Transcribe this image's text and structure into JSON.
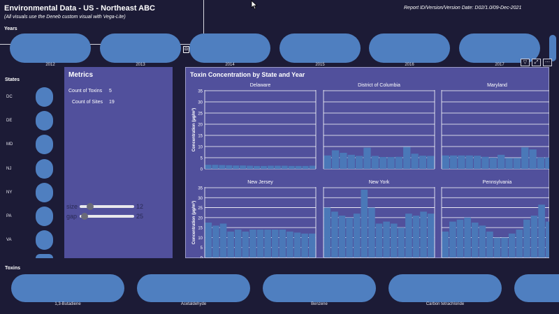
{
  "header": {
    "title": "Environmental Data - US - Northeast ABC",
    "subtitle": "(All visuals use the Deneb custom visual with Vega-Lite)",
    "report_id": "Report ID/Version/Version Date: D02/1.0/09-Dec-2021"
  },
  "years": {
    "label": "Years",
    "items": [
      "2012",
      "2013",
      "2014",
      "2015",
      "2016",
      "2017"
    ]
  },
  "states": {
    "label": "States",
    "items": [
      "DC",
      "DE",
      "MD",
      "NJ",
      "NY",
      "PA",
      "VA"
    ]
  },
  "metrics": {
    "title": "Metrics",
    "count_toxins_label": "Count of Toxins",
    "count_toxins_value": "5",
    "count_sites_label": "Count of Sites",
    "count_sites_value": "19",
    "sliders": [
      {
        "label": "size",
        "value": "12",
        "fraction": 0.2
      },
      {
        "label": "gap",
        "value": "25",
        "fraction": 0.1
      }
    ]
  },
  "toxins": {
    "label": "Toxins",
    "items": [
      "1,3-Butadiene",
      "Acetaldehyde",
      "Benzene",
      "Carbon tetrachloride"
    ]
  },
  "colors": {
    "background": "#1c1b36",
    "panel": "#51509c",
    "pill": "#4f7fc0",
    "bar": "#4a78b8"
  },
  "icons": {
    "filter": "filter-icon",
    "focus": "focus-mode-icon",
    "more": "more-options-icon",
    "cursor": "mouse-cursor-icon"
  },
  "chart_data": {
    "type": "bar",
    "title": "Toxin Concentration by State and Year",
    "ylabel": "Concentration (µg/m³)",
    "ylim": [
      0,
      35
    ],
    "yticks": [
      0,
      5,
      10,
      15,
      20,
      25,
      30,
      35
    ],
    "facets": [
      {
        "name": "Delaware",
        "values": [
          1.8,
          1.8,
          1.7,
          1.6,
          1.5,
          1.5,
          1.4,
          1.3,
          1.3,
          1.4,
          1.4,
          1.4,
          1.3,
          1.3,
          1.3,
          1.4
        ]
      },
      {
        "name": "District of Columbia",
        "values": [
          6.0,
          8.3,
          7.2,
          6.3,
          5.8,
          9.5,
          5.8,
          5.3,
          5.3,
          5.4,
          9.8,
          6.8,
          5.9,
          5.8
        ]
      },
      {
        "name": "Maryland",
        "values": [
          6.0,
          6.0,
          6.0,
          6.0,
          5.9,
          5.4,
          5.0,
          6.3,
          4.9,
          4.9,
          9.6,
          8.7,
          5.1,
          5.1
        ]
      },
      {
        "name": "New Jersey",
        "values": [
          17.5,
          16.0,
          17.0,
          13.0,
          14.0,
          13.0,
          14.0,
          14.0,
          14.0,
          14.0,
          14.0,
          13.0,
          12.5,
          12.0,
          12.0
        ]
      },
      {
        "name": "New York",
        "values": [
          25.0,
          23.0,
          21.0,
          20.0,
          22.0,
          34.0,
          25.0,
          17.0,
          18.0,
          17.0,
          15.0,
          22.0,
          21.0,
          23.0,
          22.0
        ]
      },
      {
        "name": "Pennsylvania",
        "values": [
          13.0,
          18.0,
          19.0,
          20.0,
          17.5,
          16.0,
          13.0,
          10.0,
          10.0,
          12.0,
          14.0,
          19.0,
          21.0,
          26.5,
          18.0
        ]
      }
    ]
  }
}
